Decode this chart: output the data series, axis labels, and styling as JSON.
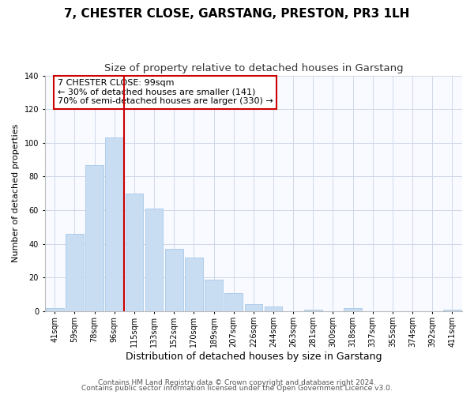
{
  "title": "7, CHESTER CLOSE, GARSTANG, PRESTON, PR3 1LH",
  "subtitle": "Size of property relative to detached houses in Garstang",
  "xlabel": "Distribution of detached houses by size in Garstang",
  "ylabel": "Number of detached properties",
  "bar_labels": [
    "41sqm",
    "59sqm",
    "78sqm",
    "96sqm",
    "115sqm",
    "133sqm",
    "152sqm",
    "170sqm",
    "189sqm",
    "207sqm",
    "226sqm",
    "244sqm",
    "263sqm",
    "281sqm",
    "300sqm",
    "318sqm",
    "337sqm",
    "355sqm",
    "374sqm",
    "392sqm",
    "411sqm"
  ],
  "bar_values": [
    2,
    46,
    87,
    103,
    70,
    61,
    37,
    32,
    19,
    11,
    4,
    3,
    0,
    1,
    0,
    2,
    0,
    0,
    0,
    0,
    1
  ],
  "bar_color": "#c8ddf2",
  "bar_edge_color": "#a8c8e8",
  "vline_index": 4,
  "vline_color": "#cc0000",
  "ylim": [
    0,
    140
  ],
  "yticks": [
    0,
    20,
    40,
    60,
    80,
    100,
    120,
    140
  ],
  "annotation_line1": "7 CHESTER CLOSE: 99sqm",
  "annotation_line2": "← 30% of detached houses are smaller (141)",
  "annotation_line3": "70% of semi-detached houses are larger (330) →",
  "footer_line1": "Contains HM Land Registry data © Crown copyright and database right 2024.",
  "footer_line2": "Contains public sector information licensed under the Open Government Licence v3.0.",
  "title_fontsize": 11,
  "subtitle_fontsize": 9.5,
  "xlabel_fontsize": 9,
  "ylabel_fontsize": 8,
  "tick_fontsize": 7,
  "annotation_fontsize": 8,
  "footer_fontsize": 6.5,
  "grid_color": "#d0d8e8",
  "bg_color": "#f8faff"
}
